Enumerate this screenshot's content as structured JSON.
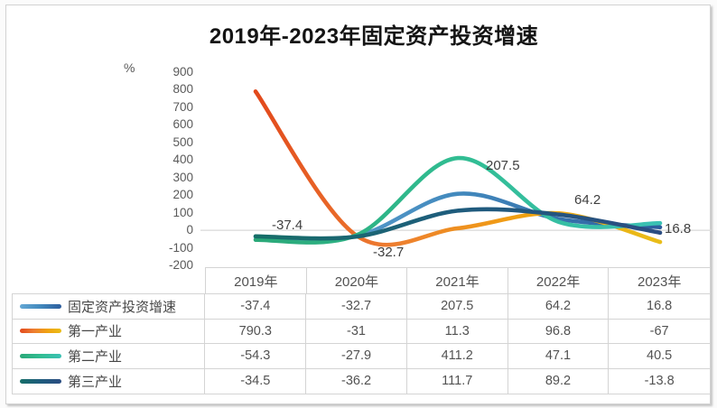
{
  "chart_data": {
    "type": "line",
    "title": "2019年-2023年固定资产投资增速",
    "ylabel": "%",
    "xlabel": "",
    "categories": [
      "2019年",
      "2020年",
      "2021年",
      "2022年",
      "2023年"
    ],
    "series": [
      {
        "name": "固定资产投资增速",
        "values": [
          -37.4,
          -32.7,
          207.5,
          64.2,
          16.8
        ],
        "colors": [
          "#64a7d4",
          "#4289bd",
          "#2d5d9d"
        ],
        "data_labels_shown": true
      },
      {
        "name": "第一产业",
        "values": [
          790.3,
          -31,
          11.3,
          96.8,
          -67
        ],
        "colors": [
          "#e2491c",
          "#ed7d31",
          "#f0a210",
          "#e9bd19"
        ],
        "data_labels_shown": false
      },
      {
        "name": "第二产业",
        "values": [
          -54.3,
          -27.9,
          411.2,
          47.1,
          40.5
        ],
        "colors": [
          "#2aa878",
          "#31bd92",
          "#3bc1b4"
        ],
        "data_labels_shown": false
      },
      {
        "name": "第三产业",
        "values": [
          -34.5,
          -36.2,
          111.7,
          89.2,
          -13.8
        ],
        "colors": [
          "#166e68",
          "#1f5c7d",
          "#2b4d82"
        ],
        "data_labels_shown": false
      }
    ],
    "y_ticks": [
      900,
      800,
      700,
      600,
      500,
      400,
      300,
      200,
      100,
      0,
      -100,
      -200
    ],
    "ylim": [
      -200,
      900
    ],
    "grid": "horizontal-zero-line-only",
    "gridline_color": "#d9d9d9",
    "line_style": "smooth",
    "legend_position": "table-left-column",
    "tick_label_color": "#595959",
    "data_label_color": "#3f3f3f"
  }
}
